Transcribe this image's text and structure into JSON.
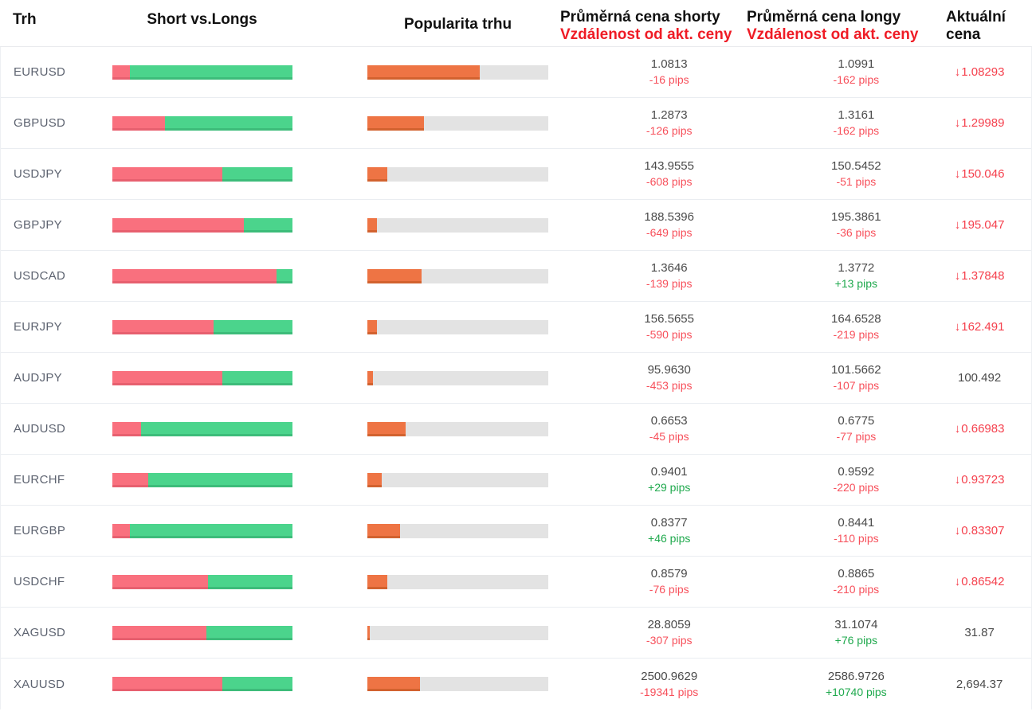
{
  "header": {
    "market": "Trh",
    "short_vs_longs": "Short vs.Longs",
    "popularity": "Popularita trhu",
    "avg_short_price": "Průměrná cena shorty",
    "avg_long_price": "Průměrná cena longy",
    "distance_from_current": "Vzdálenost od akt. ceny",
    "current_price_line1": "Aktuální",
    "current_price_line2": "cena"
  },
  "colors": {
    "header_text": "#111111",
    "header_red": "#ef1c26",
    "bar_short_red": "#f9707e",
    "bar_long_green": "#4bd48c",
    "bar_popularity_orange": "#ee7444",
    "bar_track_gray": "#e3e3e3",
    "pips_negative_red": "#f7505b",
    "pips_positive_green": "#1fa94d",
    "price_down_red": "#f5404d",
    "neutral_text": "#4a4a4a",
    "pair_text": "#5d6370",
    "row_divider": "#eaedf1"
  },
  "chart_data": {
    "type": "table",
    "columns": [
      "Trh",
      "Short vs.Longs",
      "Popularita trhu",
      "Průměrná cena shorty / Vzdálenost od akt. ceny",
      "Průměrná cena longy / Vzdálenost od akt. ceny",
      "Aktuální cena"
    ],
    "rows": [
      {
        "pair": "EURUSD",
        "short_pct": 10,
        "long_pct": 90,
        "popularity_pct": 62,
        "avg_short_price": "1.0813",
        "short_distance": "-16 pips",
        "short_distance_sign": "negative",
        "avg_long_price": "1.0991",
        "long_distance": "-162 pips",
        "long_distance_sign": "negative",
        "current_price": "1.08293",
        "current_price_trend": "down"
      },
      {
        "pair": "GBPUSD",
        "short_pct": 29,
        "long_pct": 71,
        "popularity_pct": 31,
        "avg_short_price": "1.2873",
        "short_distance": "-126 pips",
        "short_distance_sign": "negative",
        "avg_long_price": "1.3161",
        "long_distance": "-162 pips",
        "long_distance_sign": "negative",
        "current_price": "1.29989",
        "current_price_trend": "down"
      },
      {
        "pair": "USDJPY",
        "short_pct": 61,
        "long_pct": 39,
        "popularity_pct": 11,
        "avg_short_price": "143.9555",
        "short_distance": "-608 pips",
        "short_distance_sign": "negative",
        "avg_long_price": "150.5452",
        "long_distance": "-51 pips",
        "long_distance_sign": "negative",
        "current_price": "150.046",
        "current_price_trend": "down"
      },
      {
        "pair": "GBPJPY",
        "short_pct": 73,
        "long_pct": 27,
        "popularity_pct": 5,
        "avg_short_price": "188.5396",
        "short_distance": "-649 pips",
        "short_distance_sign": "negative",
        "avg_long_price": "195.3861",
        "long_distance": "-36 pips",
        "long_distance_sign": "negative",
        "current_price": "195.047",
        "current_price_trend": "down"
      },
      {
        "pair": "USDCAD",
        "short_pct": 91,
        "long_pct": 9,
        "popularity_pct": 30,
        "avg_short_price": "1.3646",
        "short_distance": "-139 pips",
        "short_distance_sign": "negative",
        "avg_long_price": "1.3772",
        "long_distance": "+13 pips",
        "long_distance_sign": "positive",
        "current_price": "1.37848",
        "current_price_trend": "down"
      },
      {
        "pair": "EURJPY",
        "short_pct": 56,
        "long_pct": 44,
        "popularity_pct": 5,
        "avg_short_price": "156.5655",
        "short_distance": "-590 pips",
        "short_distance_sign": "negative",
        "avg_long_price": "164.6528",
        "long_distance": "-219 pips",
        "long_distance_sign": "negative",
        "current_price": "162.491",
        "current_price_trend": "down"
      },
      {
        "pair": "AUDJPY",
        "short_pct": 61,
        "long_pct": 39,
        "popularity_pct": 3,
        "avg_short_price": "95.9630",
        "short_distance": "-453 pips",
        "short_distance_sign": "negative",
        "avg_long_price": "101.5662",
        "long_distance": "-107 pips",
        "long_distance_sign": "negative",
        "current_price": "100.492",
        "current_price_trend": "none"
      },
      {
        "pair": "AUDUSD",
        "short_pct": 16,
        "long_pct": 84,
        "popularity_pct": 21,
        "avg_short_price": "0.6653",
        "short_distance": "-45 pips",
        "short_distance_sign": "negative",
        "avg_long_price": "0.6775",
        "long_distance": "-77 pips",
        "long_distance_sign": "negative",
        "current_price": "0.66983",
        "current_price_trend": "down"
      },
      {
        "pair": "EURCHF",
        "short_pct": 20,
        "long_pct": 80,
        "popularity_pct": 8,
        "avg_short_price": "0.9401",
        "short_distance": "+29 pips",
        "short_distance_sign": "positive",
        "avg_long_price": "0.9592",
        "long_distance": "-220 pips",
        "long_distance_sign": "negative",
        "current_price": "0.93723",
        "current_price_trend": "down"
      },
      {
        "pair": "EURGBP",
        "short_pct": 10,
        "long_pct": 90,
        "popularity_pct": 18,
        "avg_short_price": "0.8377",
        "short_distance": "+46 pips",
        "short_distance_sign": "positive",
        "avg_long_price": "0.8441",
        "long_distance": "-110 pips",
        "long_distance_sign": "negative",
        "current_price": "0.83307",
        "current_price_trend": "down"
      },
      {
        "pair": "USDCHF",
        "short_pct": 53,
        "long_pct": 47,
        "popularity_pct": 11,
        "avg_short_price": "0.8579",
        "short_distance": "-76 pips",
        "short_distance_sign": "negative",
        "avg_long_price": "0.8865",
        "long_distance": "-210 pips",
        "long_distance_sign": "negative",
        "current_price": "0.86542",
        "current_price_trend": "down"
      },
      {
        "pair": "XAGUSD",
        "short_pct": 52,
        "long_pct": 48,
        "popularity_pct": 1,
        "avg_short_price": "28.8059",
        "short_distance": "-307 pips",
        "short_distance_sign": "negative",
        "avg_long_price": "31.1074",
        "long_distance": "+76 pips",
        "long_distance_sign": "positive",
        "current_price": "31.87",
        "current_price_trend": "none"
      },
      {
        "pair": "XAUUSD",
        "short_pct": 61,
        "long_pct": 39,
        "popularity_pct": 29,
        "avg_short_price": "2500.9629",
        "short_distance": "-19341 pips",
        "short_distance_sign": "negative",
        "avg_long_price": "2586.9726",
        "long_distance": "+10740 pips",
        "long_distance_sign": "positive",
        "current_price": "2,694.37",
        "current_price_trend": "none"
      }
    ]
  }
}
